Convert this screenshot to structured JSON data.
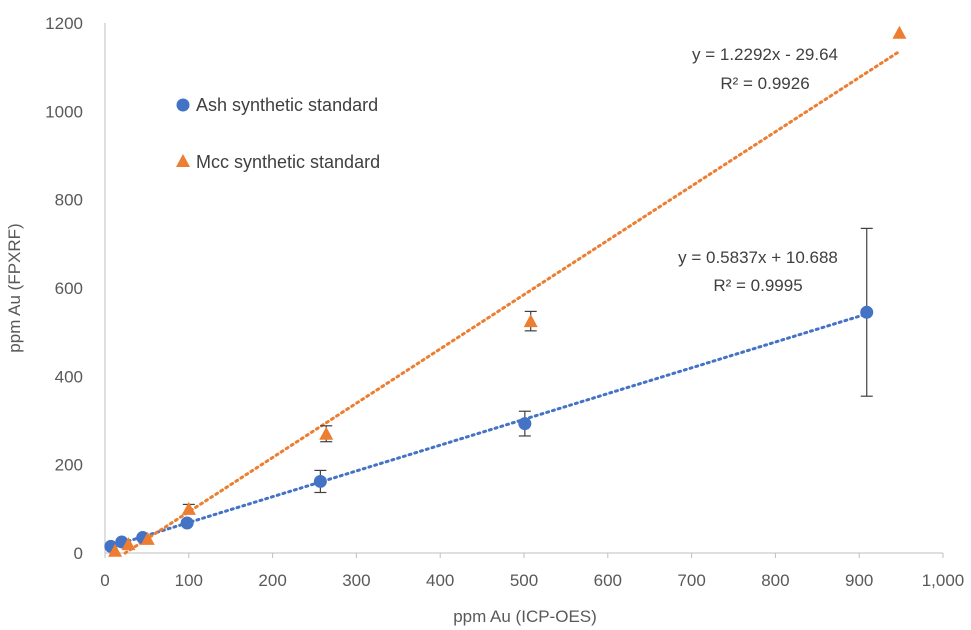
{
  "chart_data": {
    "type": "scatter",
    "xlabel": "ppm Au (ICP-OES)",
    "ylabel": "ppm Au (FPXRF)",
    "xlim": [
      0,
      1000
    ],
    "ylim": [
      0,
      1200
    ],
    "x_ticks": [
      0,
      100,
      200,
      300,
      400,
      500,
      600,
      700,
      800,
      900,
      1000
    ],
    "x_tick_labels": [
      "0",
      "100",
      "200",
      "300",
      "400",
      "500",
      "600",
      "700",
      "800",
      "900",
      "1,000"
    ],
    "y_ticks": [
      0,
      200,
      400,
      600,
      800,
      1000,
      1200
    ],
    "y_tick_labels": [
      "0",
      "200",
      "400",
      "600",
      "800",
      "1000",
      "1200"
    ],
    "grid": false,
    "legend_position": "top-left",
    "series": [
      {
        "name": "Ash synthetic standard",
        "marker": "circle",
        "color": "#4472C4",
        "x": [
          7,
          20,
          45,
          98,
          257,
          501,
          909
        ],
        "y": [
          15,
          25,
          35,
          68,
          162,
          293,
          545
        ],
        "err": [
          0,
          0,
          0,
          0,
          25,
          28,
          190
        ],
        "trendline": {
          "slope": 0.5837,
          "intercept": 10.688,
          "x_range": [
            7,
            909
          ]
        },
        "equation": "y = 0.5837x + 10.688",
        "r2": "R² = 0.9995"
      },
      {
        "name": "Mcc synthetic standard",
        "marker": "triangle",
        "color": "#ED7D31",
        "x": [
          12,
          28,
          51,
          100,
          264,
          508,
          948
        ],
        "y": [
          5,
          20,
          32,
          100,
          270,
          525,
          1178
        ],
        "err": [
          0,
          0,
          0,
          10,
          18,
          22,
          0
        ],
        "trendline": {
          "slope": 1.2292,
          "intercept": -29.64,
          "x_range": [
            24,
            948
          ]
        },
        "equation": "y = 1.2292x - 29.64",
        "r2": "R² = 0.9926"
      }
    ]
  }
}
